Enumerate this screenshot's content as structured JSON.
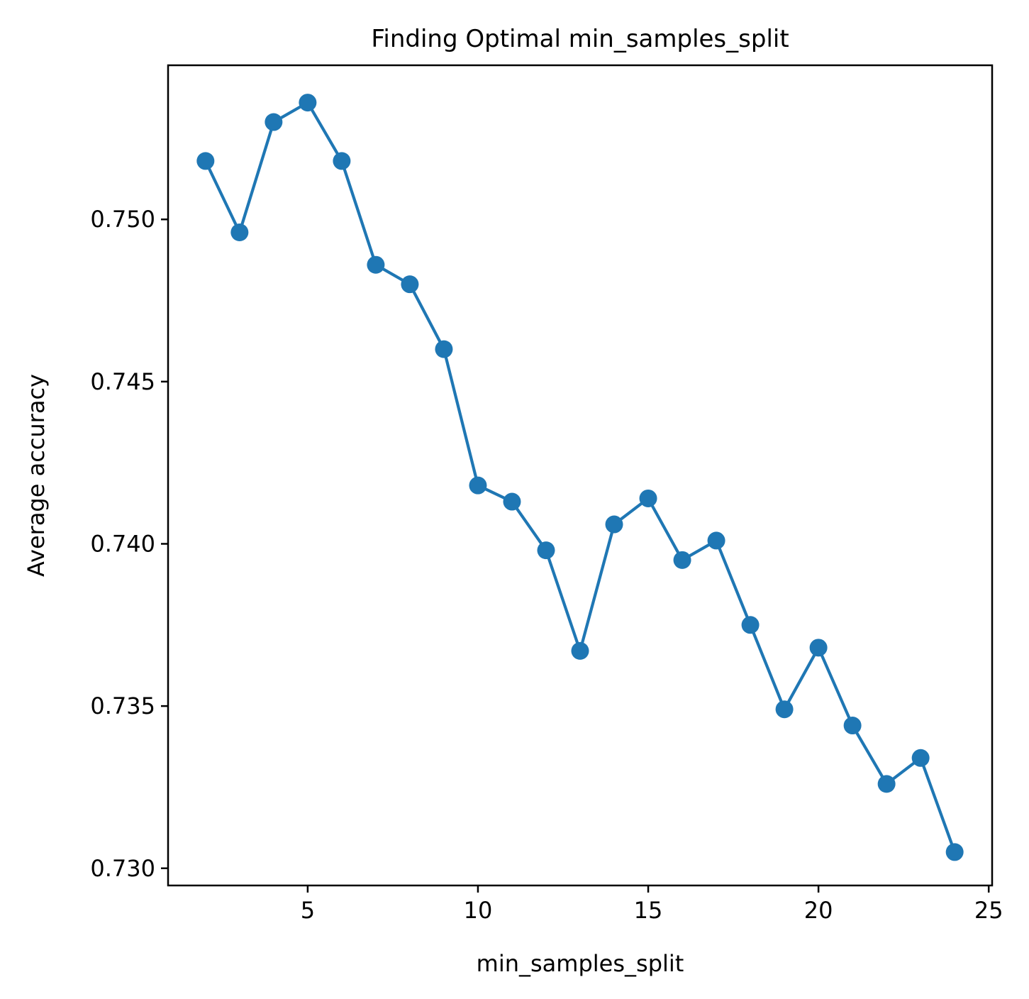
{
  "chart_data": {
    "type": "line",
    "title": "Finding Optimal min_samples_split",
    "xlabel": "min_samples_split",
    "ylabel": "Average accuracy",
    "x_ticks": [
      5,
      10,
      15,
      20,
      25
    ],
    "x_tick_labels": [
      "5",
      "10",
      "15",
      "20",
      "25"
    ],
    "y_ticks": [
      0.73,
      0.735,
      0.74,
      0.745,
      0.75
    ],
    "y_tick_labels": [
      "0.730",
      "0.735",
      "0.740",
      "0.745",
      "0.750"
    ],
    "xlim": [
      0.9,
      25.1
    ],
    "ylim": [
      0.72947,
      0.75475
    ],
    "grid": false,
    "marker": "circle",
    "color": "#1f77b4",
    "x": [
      2,
      3,
      4,
      5,
      6,
      7,
      8,
      9,
      10,
      11,
      12,
      13,
      14,
      15,
      16,
      17,
      18,
      19,
      20,
      21,
      22,
      23,
      24
    ],
    "values": [
      0.7518,
      0.7496,
      0.753,
      0.7536,
      0.7518,
      0.7486,
      0.748,
      0.746,
      0.7418,
      0.7413,
      0.7398,
      0.7367,
      0.7406,
      0.7414,
      0.7395,
      0.7401,
      0.7375,
      0.7349,
      0.7368,
      0.7344,
      0.7326,
      0.7334,
      0.7305
    ]
  }
}
